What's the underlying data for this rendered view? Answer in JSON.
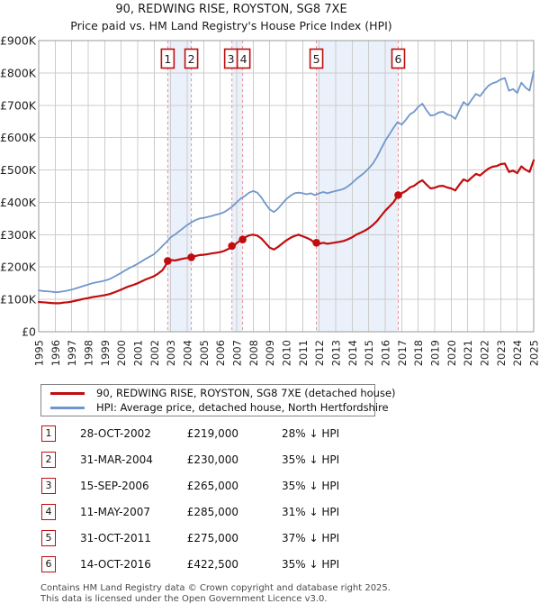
{
  "page": {
    "title": "90, REDWING RISE, ROYSTON, SG8 7XE",
    "subtitle": "Price paid vs. HM Land Registry's House Price Index (HPI)"
  },
  "chart_data": {
    "type": "line",
    "title": "90, REDWING RISE, ROYSTON, SG8 7XE",
    "subtitle": "Price paid vs. HM Land Registry's House Price Index (HPI)",
    "grid": true,
    "legend_position": "bottom",
    "x_axis": {
      "tick_labels": [
        "1995",
        "1996",
        "1997",
        "1998",
        "1999",
        "2000",
        "2001",
        "2002",
        "2003",
        "2004",
        "2005",
        "2006",
        "2007",
        "2008",
        "2009",
        "2010",
        "2011",
        "2012",
        "2013",
        "2014",
        "2015",
        "2016",
        "2017",
        "2018",
        "2019",
        "2020",
        "2021",
        "2022",
        "2023",
        "2024",
        "2025"
      ]
    },
    "y_axis": {
      "unit": "£K",
      "max": 900,
      "ticks": [
        {
          "value": 0,
          "label": "£0"
        },
        {
          "value": 100,
          "label": "£100K"
        },
        {
          "value": 200,
          "label": "£200K"
        },
        {
          "value": 300,
          "label": "£300K"
        },
        {
          "value": 400,
          "label": "£400K"
        },
        {
          "value": 500,
          "label": "£500K"
        },
        {
          "value": 600,
          "label": "£600K"
        },
        {
          "value": 700,
          "label": "£700K"
        },
        {
          "value": 800,
          "label": "£800K"
        },
        {
          "value": 900,
          "label": "£900K"
        }
      ]
    },
    "series": [
      {
        "name": "hpi",
        "legend": "HPI: Average price, detached house, North Hertfordshire",
        "color": "#7097cb",
        "x_start": 1995,
        "x_step": 0.25,
        "values_k": [
          128,
          126,
          125,
          124,
          122,
          123,
          125,
          127,
          130,
          134,
          138,
          142,
          146,
          150,
          153,
          155,
          158,
          162,
          168,
          175,
          182,
          190,
          197,
          203,
          210,
          218,
          226,
          233,
          240,
          252,
          265,
          278,
          292,
          300,
          310,
          320,
          330,
          338,
          345,
          350,
          352,
          355,
          358,
          362,
          365,
          370,
          378,
          388,
          400,
          412,
          420,
          430,
          435,
          430,
          415,
          395,
          378,
          370,
          380,
          395,
          410,
          420,
          428,
          430,
          428,
          425,
          428,
          422,
          428,
          432,
          428,
          432,
          435,
          438,
          442,
          450,
          460,
          472,
          482,
          492,
          505,
          520,
          540,
          565,
          590,
          610,
          630,
          648,
          640,
          655,
          672,
          680,
          695,
          705,
          685,
          668,
          670,
          678,
          680,
          672,
          668,
          658,
          685,
          710,
          700,
          718,
          735,
          728,
          745,
          760,
          768,
          772,
          780,
          784,
          745,
          750,
          738,
          770,
          755,
          745,
          805
        ]
      },
      {
        "name": "price-paid",
        "legend": "90, REDWING RISE, ROYSTON, SG8 7XE (detached house)",
        "color": "#c00d0d",
        "x_start": 1995,
        "x_step": 0.25,
        "values_k": [
          92,
          91,
          90,
          89,
          88,
          88,
          90,
          91,
          93,
          96,
          99,
          102,
          104,
          107,
          109,
          111,
          113,
          116,
          120,
          125,
          130,
          136,
          141,
          145,
          150,
          156,
          162,
          167,
          172,
          180,
          190,
          210,
          222,
          220,
          223,
          226,
          228,
          231,
          234,
          237,
          238,
          240,
          242,
          244,
          246,
          250,
          256,
          264,
          274,
          283,
          292,
          298,
          300,
          297,
          288,
          274,
          260,
          254,
          262,
          272,
          282,
          290,
          296,
          300,
          295,
          290,
          284,
          273,
          272,
          275,
          272,
          274,
          276,
          278,
          281,
          286,
          292,
          300,
          306,
          312,
          320,
          330,
          342,
          358,
          374,
          387,
          400,
          420,
          428,
          435,
          446,
          451,
          461,
          468,
          455,
          443,
          445,
          450,
          451,
          446,
          443,
          437,
          455,
          471,
          465,
          477,
          488,
          483,
          494,
          504,
          510,
          512,
          518,
          520,
          494,
          498,
          490,
          511,
          501,
          494,
          530
        ]
      }
    ],
    "sale_points": [
      {
        "label": "1",
        "year": 2002.82,
        "price_k": 219
      },
      {
        "label": "2",
        "year": 2004.25,
        "price_k": 230
      },
      {
        "label": "3",
        "year": 2006.71,
        "price_k": 265
      },
      {
        "label": "4",
        "year": 2007.36,
        "price_k": 285
      },
      {
        "label": "5",
        "year": 2011.83,
        "price_k": 275
      },
      {
        "label": "6",
        "year": 2016.79,
        "price_k": 422.5
      }
    ],
    "ownership_bands": [
      {
        "from": 2002.82,
        "to": 2004.25
      },
      {
        "from": 2006.71,
        "to": 2007.36
      },
      {
        "from": 2011.83,
        "to": 2016.79
      }
    ],
    "colors": {
      "grid": "#cccccc",
      "plot_border": "#999999",
      "band_fill": "#ebf1fa",
      "sale_dash_line": "#ef8e8e",
      "marker_border": "#c00d0d"
    }
  },
  "legend": {
    "items": [
      {
        "label": "90, REDWING RISE, ROYSTON, SG8 7XE (detached house)",
        "color": "#c00d0d"
      },
      {
        "label": "HPI: Average price, detached house, North Hertfordshire",
        "color": "#7097cb"
      }
    ]
  },
  "transactions": [
    {
      "num": "1",
      "date": "28-OCT-2002",
      "price": "£219,000",
      "vs_hpi": "28% ↓ HPI"
    },
    {
      "num": "2",
      "date": "31-MAR-2004",
      "price": "£230,000",
      "vs_hpi": "35% ↓ HPI"
    },
    {
      "num": "3",
      "date": "15-SEP-2006",
      "price": "£265,000",
      "vs_hpi": "35% ↓ HPI"
    },
    {
      "num": "4",
      "date": "11-MAY-2007",
      "price": "£285,000",
      "vs_hpi": "31% ↓ HPI"
    },
    {
      "num": "5",
      "date": "31-OCT-2011",
      "price": "£275,000",
      "vs_hpi": "37% ↓ HPI"
    },
    {
      "num": "6",
      "date": "14-OCT-2016",
      "price": "£422,500",
      "vs_hpi": "35% ↓ HPI"
    }
  ],
  "footer": {
    "line1": "Contains HM Land Registry data © Crown copyright and database right 2025.",
    "line2": "This data is licensed under the Open Government Licence v3.0."
  }
}
